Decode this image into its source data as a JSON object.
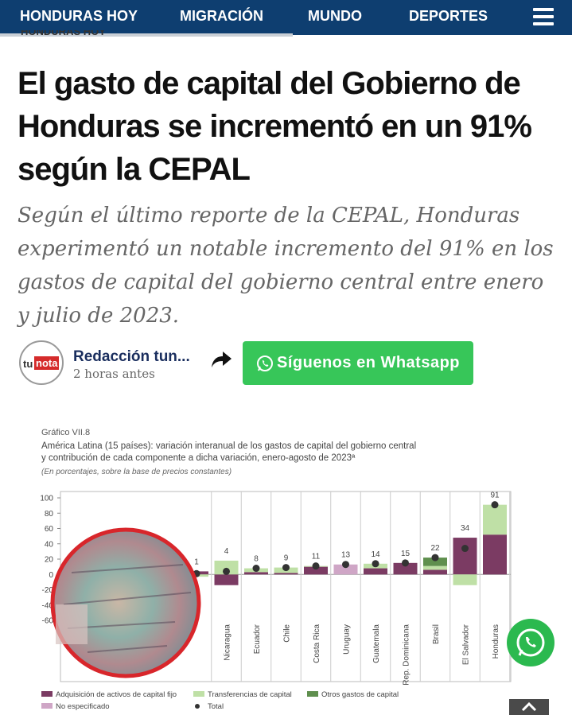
{
  "nav": {
    "items": [
      "HONDURAS HOY",
      "MIGRACIÓN",
      "MUNDO",
      "DEPORTES"
    ]
  },
  "article": {
    "section": "HONDURAS HOY",
    "headline": "El gasto de capital del Gobierno de Honduras se incrementó en un 91% según la CEPAL",
    "lede": "Según el último reporte de la CEPAL, Honduras experimentó un notable incremento del 91% en los gastos de capital del gobierno central entre enero y julio de 2023.",
    "logo": [
      "tu",
      "nota"
    ],
    "author": "Redacción tun...",
    "time": "2 horas antes",
    "button": "Síguenos en Whatsapp"
  },
  "chart_data": {
    "type": "bar",
    "stacked": true,
    "label": "Gráfico VII.8",
    "title": [
      "América Latina (15 países): variación interanual de los gastos de capital del gobierno central",
      "y contribución de cada componente a dicha variación, enero-agosto de 2023ª"
    ],
    "note": "(En porcentajes, sobre la base de precios constantes)",
    "categories": [
      null,
      "Nicaragua",
      "Ecuador",
      "Chile",
      "Costa Rica",
      "Uruguay",
      "Guatemala",
      "Rep. Dominicana",
      "Brasil",
      "El Salvador",
      "Honduras"
    ],
    "series": [
      {
        "name": "Adquisición de activos de capital fijo",
        "color": "#7b3b63",
        "values": [
          4,
          -14,
          3,
          2,
          10,
          null,
          8,
          15,
          6,
          48,
          52
        ]
      },
      {
        "name": "Transferencias de capital",
        "color": "#bfe0a6",
        "values": [
          -3,
          18,
          5,
          7,
          1,
          null,
          6,
          null,
          5,
          -14,
          39
        ]
      },
      {
        "name": "Otros gastos de capital",
        "color": "#5f8f4e",
        "values": [
          null,
          null,
          null,
          null,
          null,
          null,
          null,
          null,
          11,
          null,
          null
        ]
      },
      {
        "name": "No especificado",
        "color": "#cfa6c6",
        "values": [
          null,
          null,
          null,
          null,
          null,
          13,
          null,
          null,
          null,
          null,
          null
        ]
      },
      {
        "name": "Total",
        "color": "#333333",
        "marker": "dot",
        "values": [
          1,
          4,
          8,
          9,
          11,
          13,
          14,
          15,
          22,
          34,
          91
        ]
      }
    ],
    "ylim": [
      -60,
      100
    ],
    "yticks": [
      -60,
      -40,
      -20,
      0,
      20,
      40,
      60,
      80,
      100
    ],
    "grid": false
  }
}
